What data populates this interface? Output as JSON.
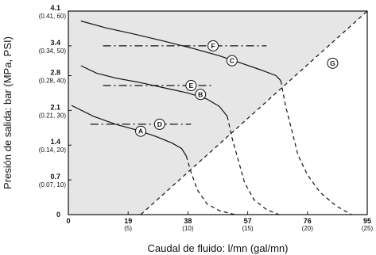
{
  "chart_data": {
    "type": "line",
    "xlabel": "Caudal de fluido: l/mn (gal/mn)",
    "ylabel": "Presión de salida: bar (MPa, PSI)",
    "xlim": [
      0,
      95
    ],
    "ylim": [
      0,
      4.1
    ],
    "grid": false,
    "x_ticks": [
      {
        "value": 0,
        "label": "0",
        "sub": ""
      },
      {
        "value": 19,
        "label": "19",
        "sub": "(5)"
      },
      {
        "value": 38,
        "label": "38",
        "sub": "(10)"
      },
      {
        "value": 57,
        "label": "57",
        "sub": "(15)"
      },
      {
        "value": 76,
        "label": "76",
        "sub": "(20)"
      },
      {
        "value": 95,
        "label": "95",
        "sub": "(25)"
      }
    ],
    "y_ticks": [
      {
        "value": 0,
        "label": "0",
        "sub": ""
      },
      {
        "value": 0.7,
        "label": "0.7",
        "sub": "(0.07, 10)"
      },
      {
        "value": 1.4,
        "label": "1.4",
        "sub": "(0.14, 20)"
      },
      {
        "value": 2.1,
        "label": "2.1",
        "sub": "(0.21, 30)"
      },
      {
        "value": 2.8,
        "label": "2.8",
        "sub": "(0.28, 40)"
      },
      {
        "value": 3.4,
        "label": "3.4",
        "sub": "(0.34, 50)"
      },
      {
        "value": 4.1,
        "label": "4.1",
        "sub": "(0.41, 60)"
      }
    ],
    "shaded_region": {
      "color": "#e6e6e6",
      "boundary_series": "G"
    },
    "series": [
      {
        "name": "A",
        "style": "solid",
        "x": [
          1,
          8,
          15,
          22,
          28,
          33,
          36,
          37.5
        ],
        "y": [
          2.2,
          1.98,
          1.82,
          1.7,
          1.57,
          1.44,
          1.33,
          1.18
        ]
      },
      {
        "name": "A",
        "style": "dashed",
        "x": [
          37.5,
          39,
          41,
          44,
          48,
          53
        ],
        "y": [
          1.18,
          0.85,
          0.5,
          0.22,
          0.08,
          0.0
        ]
      },
      {
        "name": "B",
        "style": "solid",
        "x": [
          4,
          9,
          15,
          22,
          30,
          38,
          44,
          48,
          50.5
        ],
        "y": [
          3.0,
          2.85,
          2.75,
          2.67,
          2.56,
          2.45,
          2.33,
          2.18,
          1.98
        ]
      },
      {
        "name": "B",
        "style": "dashed",
        "x": [
          50.5,
          52,
          54,
          56,
          59,
          63,
          67
        ],
        "y": [
          1.98,
          1.55,
          1.1,
          0.65,
          0.3,
          0.1,
          0.0
        ]
      },
      {
        "name": "C",
        "style": "solid",
        "x": [
          4,
          12,
          20,
          30,
          40,
          48,
          55,
          61,
          66,
          67.5
        ],
        "y": [
          3.9,
          3.76,
          3.65,
          3.5,
          3.34,
          3.2,
          3.05,
          2.92,
          2.8,
          2.7
        ]
      },
      {
        "name": "C",
        "style": "dashed",
        "x": [
          67.5,
          69,
          71,
          73,
          76,
          80,
          85,
          90
        ],
        "y": [
          2.7,
          2.2,
          1.7,
          1.2,
          0.8,
          0.45,
          0.18,
          0.0
        ]
      },
      {
        "name": "D",
        "style": "dashdot",
        "x": [
          7,
          39
        ],
        "y": [
          1.82,
          1.82
        ]
      },
      {
        "name": "E",
        "style": "dashdot",
        "x": [
          11,
          46
        ],
        "y": [
          2.6,
          2.6
        ]
      },
      {
        "name": "F",
        "style": "dashdot",
        "x": [
          11,
          63
        ],
        "y": [
          3.4,
          3.4
        ]
      },
      {
        "name": "G",
        "style": "dashed",
        "x": [
          23,
          95
        ],
        "y": [
          0.0,
          4.1
        ]
      }
    ],
    "labels": [
      {
        "text": "A",
        "x": 23,
        "y": 1.68
      },
      {
        "text": "B",
        "x": 42,
        "y": 2.42
      },
      {
        "text": "C",
        "x": 52,
        "y": 3.1
      },
      {
        "text": "D",
        "x": 29,
        "y": 1.82
      },
      {
        "text": "E",
        "x": 39,
        "y": 2.6
      },
      {
        "text": "F",
        "x": 46,
        "y": 3.4
      },
      {
        "text": "G",
        "x": 84,
        "y": 3.05
      }
    ]
  }
}
